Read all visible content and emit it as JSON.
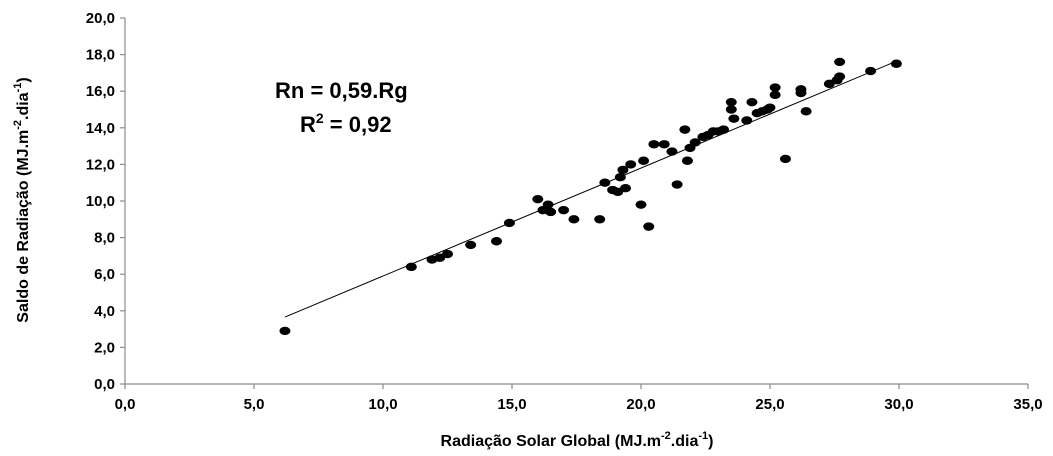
{
  "chart_data": {
    "type": "scatter",
    "xlabel": "Radiação Solar Global (MJ.m-2.dia-1)",
    "xlabel_parts": {
      "main": "Radiação Solar Global (MJ.m",
      "sup1": "-2",
      "mid": ".dia",
      "sup2": "-1",
      "end": ")"
    },
    "ylabel": "Saldo de Radiação (MJ.m-2.dia-1)",
    "ylabel_parts": {
      "main": "Saldo de Radiação (MJ.m",
      "sup1": "-2",
      "mid": ".dia",
      "sup2": "-1",
      "end": ")"
    },
    "xlim": [
      0,
      35
    ],
    "ylim": [
      0,
      20
    ],
    "xticks": [
      0,
      5,
      10,
      15,
      20,
      25,
      30,
      35
    ],
    "xtick_labels": [
      "0,0",
      "5,0",
      "10,0",
      "15,0",
      "20,0",
      "25,0",
      "30,0",
      "35,0"
    ],
    "yticks": [
      0,
      2,
      4,
      6,
      8,
      10,
      12,
      14,
      16,
      18,
      20
    ],
    "ytick_labels": [
      "0,0",
      "2,0",
      "4,0",
      "6,0",
      "8,0",
      "10,0",
      "12,0",
      "14,0",
      "16,0",
      "18,0",
      "20,0"
    ],
    "grid": false,
    "legend": "none",
    "colors": {
      "points": "#000000",
      "trendline": "#000000"
    },
    "trendline": {
      "slope": 0.59,
      "intercept": 0,
      "x": [
        6.2,
        29.8
      ]
    },
    "annotations": {
      "equation_left": "Rn = 0,59.Rg",
      "r2_prefix": "R",
      "r2_sup": "2",
      "r2_value": " = 0,92"
    },
    "points": [
      [
        6.2,
        2.9
      ],
      [
        11.1,
        6.4
      ],
      [
        11.9,
        6.8
      ],
      [
        12.2,
        6.9
      ],
      [
        12.5,
        7.1
      ],
      [
        13.4,
        7.6
      ],
      [
        14.4,
        7.8
      ],
      [
        14.9,
        8.8
      ],
      [
        16.0,
        10.1
      ],
      [
        16.2,
        9.5
      ],
      [
        16.4,
        9.8
      ],
      [
        16.5,
        9.4
      ],
      [
        17.0,
        9.5
      ],
      [
        17.4,
        9.0
      ],
      [
        18.4,
        9.0
      ],
      [
        18.6,
        11.0
      ],
      [
        18.9,
        10.6
      ],
      [
        19.1,
        10.5
      ],
      [
        19.2,
        11.3
      ],
      [
        19.3,
        11.7
      ],
      [
        19.4,
        10.7
      ],
      [
        19.6,
        12.0
      ],
      [
        20.0,
        9.8
      ],
      [
        20.1,
        12.2
      ],
      [
        20.3,
        8.6
      ],
      [
        20.5,
        13.1
      ],
      [
        20.9,
        13.1
      ],
      [
        21.2,
        12.7
      ],
      [
        21.4,
        10.9
      ],
      [
        21.8,
        12.2
      ],
      [
        21.7,
        13.9
      ],
      [
        21.9,
        12.9
      ],
      [
        22.1,
        13.2
      ],
      [
        22.4,
        13.5
      ],
      [
        22.6,
        13.6
      ],
      [
        22.8,
        13.8
      ],
      [
        23.0,
        13.8
      ],
      [
        23.2,
        13.9
      ],
      [
        23.5,
        15.4
      ],
      [
        23.5,
        15.0
      ],
      [
        23.6,
        14.5
      ],
      [
        24.1,
        14.4
      ],
      [
        24.3,
        15.4
      ],
      [
        24.5,
        14.8
      ],
      [
        24.7,
        14.9
      ],
      [
        24.9,
        15.0
      ],
      [
        25.0,
        15.1
      ],
      [
        25.2,
        15.8
      ],
      [
        25.2,
        16.2
      ],
      [
        25.6,
        12.3
      ],
      [
        26.2,
        15.9
      ],
      [
        26.2,
        16.1
      ],
      [
        26.4,
        14.9
      ],
      [
        27.3,
        16.4
      ],
      [
        27.6,
        16.6
      ],
      [
        27.7,
        17.6
      ],
      [
        27.7,
        16.8
      ],
      [
        28.9,
        17.1
      ],
      [
        29.9,
        17.5
      ]
    ]
  }
}
